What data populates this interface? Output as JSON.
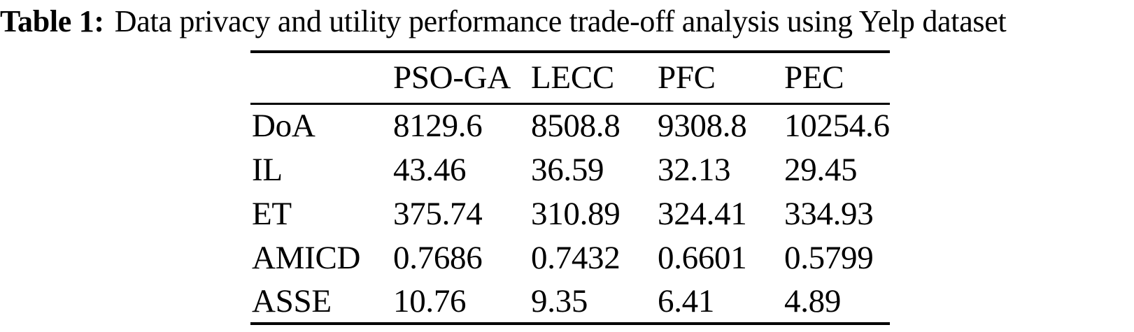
{
  "caption": {
    "label": "Table 1:",
    "text": "Data privacy and utility performance trade-off analysis using Yelp dataset"
  },
  "table": {
    "columns": [
      "",
      "PSO-GA",
      "LECC",
      "PFC",
      "PEC"
    ],
    "rows": [
      {
        "label": "DoA",
        "cells": [
          {
            "text": "8129.6",
            "bold": false
          },
          {
            "text": "8508.8",
            "bold": false
          },
          {
            "text": "9308.8",
            "bold": false
          },
          {
            "text": "10254.6",
            "bold": true
          }
        ]
      },
      {
        "label": "IL",
        "cells": [
          {
            "text": "43.46",
            "bold": false
          },
          {
            "text": "36.59",
            "bold": false
          },
          {
            "text": "32.13",
            "bold": false
          },
          {
            "text": "29.45",
            "bold": true
          }
        ]
      },
      {
        "label": "ET",
        "cells": [
          {
            "text": "375.74",
            "bold": false
          },
          {
            "text": "310.89",
            "bold": true
          },
          {
            "text": "324.41",
            "bold": false
          },
          {
            "text": "334.93",
            "bold": false
          }
        ]
      },
      {
        "label": "AMICD",
        "cells": [
          {
            "text": "0.7686",
            "bold": false
          },
          {
            "text": "0.7432",
            "bold": false
          },
          {
            "text": "0.6601",
            "bold": false
          },
          {
            "text": "0.5799",
            "bold": true
          }
        ]
      },
      {
        "label": "ASSE",
        "cells": [
          {
            "text": "10.76",
            "bold": false
          },
          {
            "text": "9.35",
            "bold": false
          },
          {
            "text": "6.41",
            "bold": false
          },
          {
            "text": "4.89",
            "bold": true
          }
        ]
      }
    ]
  },
  "colors": {
    "text": "#000000",
    "background": "#ffffff",
    "rule": "#000000"
  }
}
